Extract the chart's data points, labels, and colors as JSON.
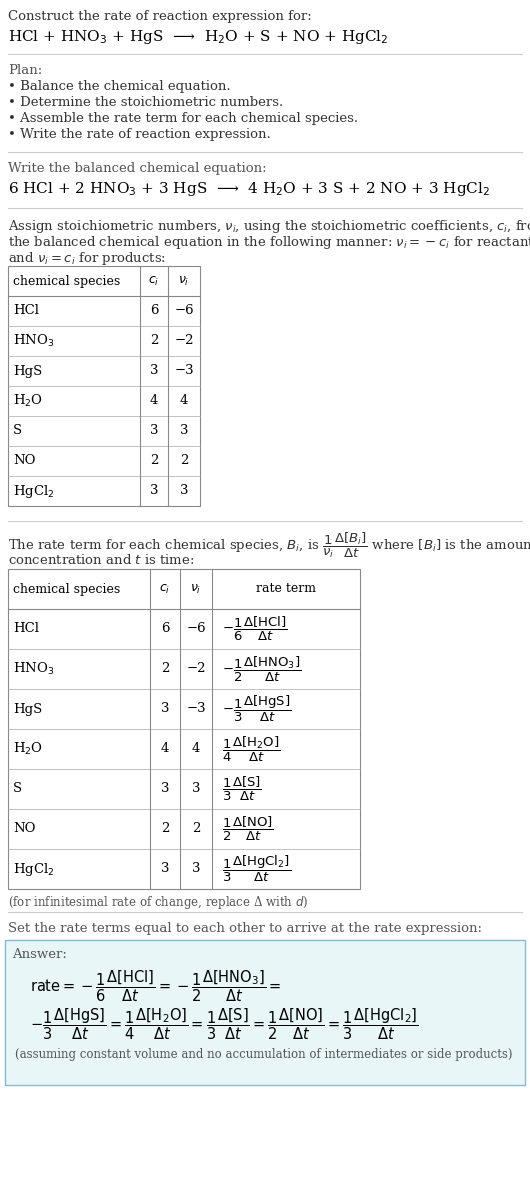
{
  "title_line1": "Construct the rate of reaction expression for:",
  "title_line2": "HCl + HNO$_3$ + HgS  ⟶  H$_2$O + S + NO + HgCl$_2$",
  "plan_header": "Plan:",
  "plan_items": [
    "• Balance the chemical equation.",
    "• Determine the stoichiometric numbers.",
    "• Assemble the rate term for each chemical species.",
    "• Write the rate of reaction expression."
  ],
  "balanced_header": "Write the balanced chemical equation:",
  "balanced_eq": "6 HCl + 2 HNO$_3$ + 3 HgS  ⟶  4 H$_2$O + 3 S + 2 NO + 3 HgCl$_2$",
  "stoich_intro1": "Assign stoichiometric numbers, $\\nu_i$, using the stoichiometric coefficients, $c_i$, from",
  "stoich_intro2": "the balanced chemical equation in the following manner: $\\nu_i = -c_i$ for reactants",
  "stoich_intro3": "and $\\nu_i = c_i$ for products:",
  "table1_headers": [
    "chemical species",
    "$c_i$",
    "$\\nu_i$"
  ],
  "table1_rows": [
    [
      "HCl",
      "6",
      "−6"
    ],
    [
      "HNO$_3$",
      "2",
      "−2"
    ],
    [
      "HgS",
      "3",
      "−3"
    ],
    [
      "H$_2$O",
      "4",
      "4"
    ],
    [
      "S",
      "3",
      "3"
    ],
    [
      "NO",
      "2",
      "2"
    ],
    [
      "HgCl$_2$",
      "3",
      "3"
    ]
  ],
  "rate_intro1": "The rate term for each chemical species, $B_i$, is $\\dfrac{1}{\\nu_i}\\dfrac{\\Delta[B_i]}{\\Delta t}$ where $[B_i]$ is the amount",
  "rate_intro2": "concentration and $t$ is time:",
  "table2_headers": [
    "chemical species",
    "$c_i$",
    "$\\nu_i$",
    "rate term"
  ],
  "table2_rows": [
    [
      "HCl",
      "6",
      "−6",
      "$-\\dfrac{1}{6}\\dfrac{\\Delta[\\mathrm{HCl}]}{\\Delta t}$"
    ],
    [
      "HNO$_3$",
      "2",
      "−2",
      "$-\\dfrac{1}{2}\\dfrac{\\Delta[\\mathrm{HNO_3}]}{\\Delta t}$"
    ],
    [
      "HgS",
      "3",
      "−3",
      "$-\\dfrac{1}{3}\\dfrac{\\Delta[\\mathrm{HgS}]}{\\Delta t}$"
    ],
    [
      "H$_2$O",
      "4",
      "4",
      "$\\dfrac{1}{4}\\dfrac{\\Delta[\\mathrm{H_2O}]}{\\Delta t}$"
    ],
    [
      "S",
      "3",
      "3",
      "$\\dfrac{1}{3}\\dfrac{\\Delta[\\mathrm{S}]}{\\Delta t}$"
    ],
    [
      "NO",
      "2",
      "2",
      "$\\dfrac{1}{2}\\dfrac{\\Delta[\\mathrm{NO}]}{\\Delta t}$"
    ],
    [
      "HgCl$_2$",
      "3",
      "3",
      "$\\dfrac{1}{3}\\dfrac{\\Delta[\\mathrm{HgCl_2}]}{\\Delta t}$"
    ]
  ],
  "infinitesimal_note": "(for infinitesimal rate of change, replace Δ with $d$)",
  "set_equal_header": "Set the rate terms equal to each other to arrive at the rate expression:",
  "answer_label": "Answer:",
  "answer_box_color": "#e8f6f8",
  "answer_box_border": "#88bbcc",
  "answer_line1": "$\\mathrm{rate} = -\\dfrac{1}{6}\\dfrac{\\Delta[\\mathrm{HCl}]}{\\Delta t} = -\\dfrac{1}{2}\\dfrac{\\Delta[\\mathrm{HNO_3}]}{\\Delta t} =$",
  "answer_line2": "$-\\dfrac{1}{3}\\dfrac{\\Delta[\\mathrm{HgS}]}{\\Delta t} = \\dfrac{1}{4}\\dfrac{\\Delta[\\mathrm{H_2O}]}{\\Delta t} = \\dfrac{1}{3}\\dfrac{\\Delta[\\mathrm{S}]}{\\Delta t} = \\dfrac{1}{2}\\dfrac{\\Delta[\\mathrm{NO}]}{\\Delta t} = \\dfrac{1}{3}\\dfrac{\\Delta[\\mathrm{HgCl_2}]}{\\Delta t}$",
  "answer_note": "(assuming constant volume and no accumulation of intermediates or side products)",
  "bg_color": "#ffffff",
  "text_color": "#000000"
}
